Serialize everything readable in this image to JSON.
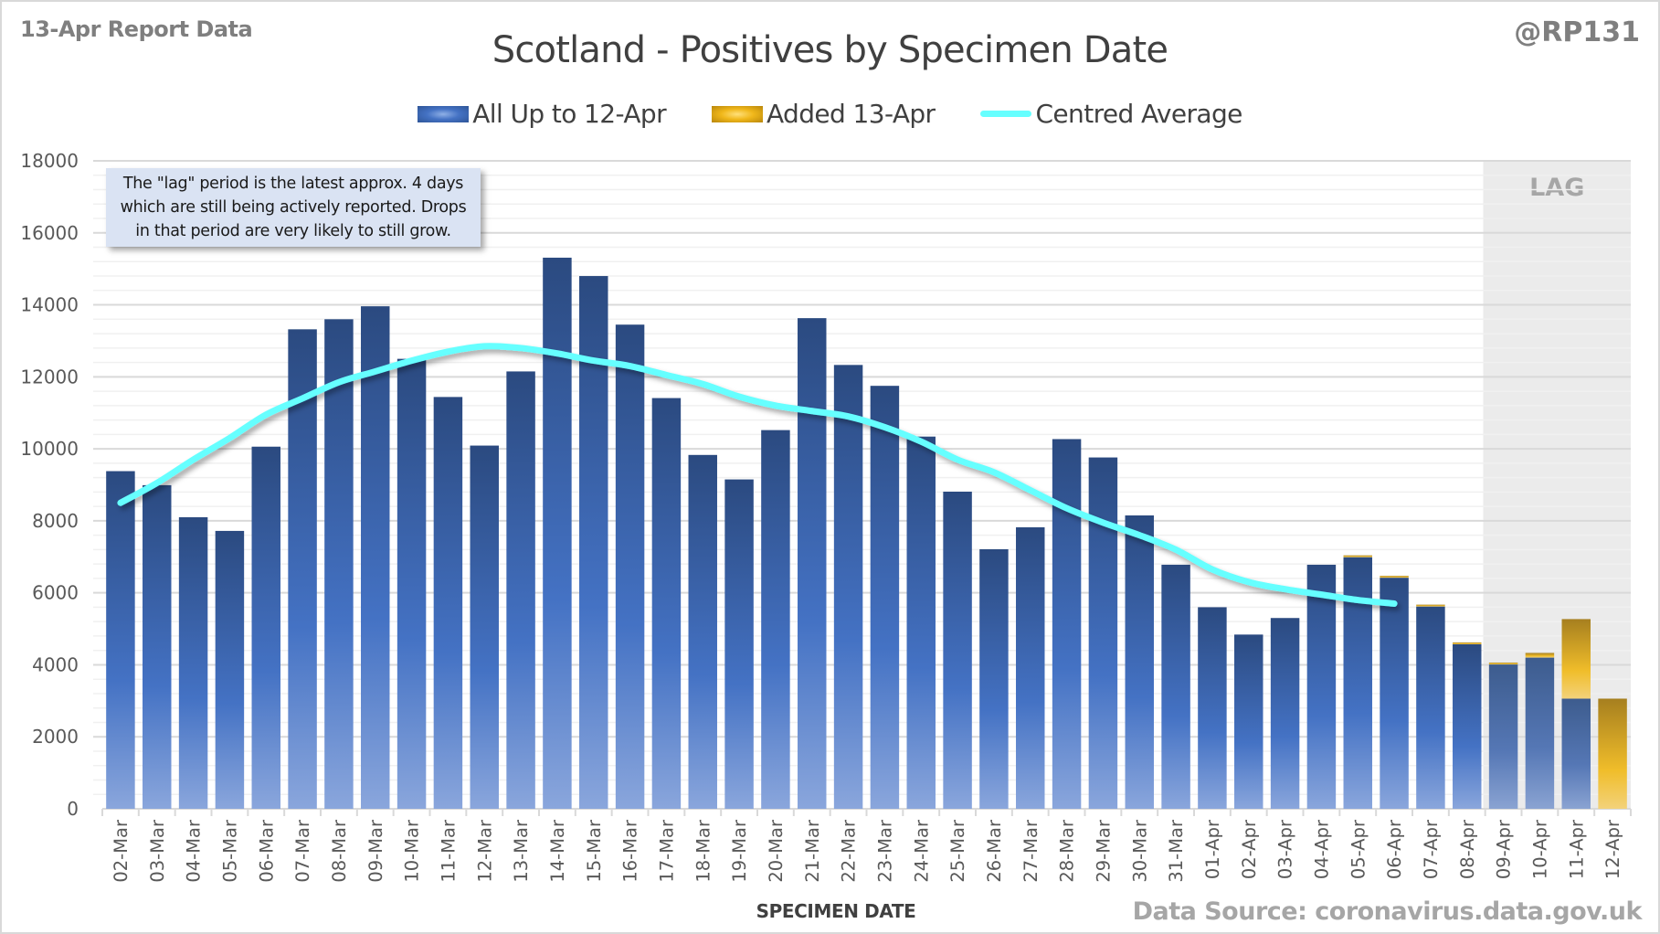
{
  "header": {
    "report_date": "13-Apr Report Data",
    "handle": "@RP131",
    "title": "Scotland - Positives by Specimen Date"
  },
  "legend": {
    "items": [
      {
        "label": "All Up to 12-Apr",
        "icon": "blue-gradient-swatch"
      },
      {
        "label": "Added 13-Apr",
        "icon": "gold-gradient-swatch"
      },
      {
        "label": "Centred Average",
        "icon": "cyan-line-swatch"
      }
    ]
  },
  "note": {
    "lines": [
      "The \"lag\" period is the latest approx. 4 days",
      "which are still being actively reported.  Drops",
      "in that period are very likely to still grow."
    ]
  },
  "lag_label": "LAG",
  "footer": {
    "xlabel": "SPECIMEN DATE",
    "source": "Data Source: coronavirus.data.gov.uk"
  },
  "colors": {
    "blue_top": "#2b4a80",
    "blue_mid": "#4472c4",
    "blue_bottom": "#8aa6dc",
    "gold_top": "#a67f1f",
    "gold_mid": "#f0bd2a",
    "gold_bottom": "#f3d27a",
    "average": "#66ffff",
    "lag_shade": "#ebebeb",
    "grid_major": "#d9d9d9",
    "grid_minor": "#f0f0f0"
  },
  "chart_data": {
    "type": "bar",
    "stacked": true,
    "title": "Scotland - Positives by Specimen Date",
    "xlabel": "SPECIMEN DATE",
    "ylabel": "",
    "ylim": [
      0,
      18000
    ],
    "yticks": [
      0,
      2000,
      4000,
      6000,
      8000,
      10000,
      12000,
      14000,
      16000,
      18000
    ],
    "ytick_labels": [
      "0",
      "2000",
      "4000",
      "6000",
      "8000",
      "10000",
      "12000",
      "14000",
      "16000",
      "18000"
    ],
    "grid": true,
    "legend_position": "top-center",
    "categories": [
      "02-Mar",
      "03-Mar",
      "04-Mar",
      "05-Mar",
      "06-Mar",
      "07-Mar",
      "08-Mar",
      "09-Mar",
      "10-Mar",
      "11-Mar",
      "12-Mar",
      "13-Mar",
      "14-Mar",
      "15-Mar",
      "16-Mar",
      "17-Mar",
      "18-Mar",
      "19-Mar",
      "20-Mar",
      "21-Mar",
      "22-Mar",
      "23-Mar",
      "24-Mar",
      "25-Mar",
      "26-Mar",
      "27-Mar",
      "28-Mar",
      "29-Mar",
      "30-Mar",
      "31-Mar",
      "01-Apr",
      "02-Apr",
      "03-Apr",
      "04-Apr",
      "05-Apr",
      "06-Apr",
      "07-Apr",
      "08-Apr",
      "09-Apr",
      "10-Apr",
      "11-Apr",
      "12-Apr"
    ],
    "series": [
      {
        "name": "All Up to 12-Apr",
        "type": "bar",
        "values": [
          9380,
          8990,
          8100,
          7720,
          10060,
          13320,
          13600,
          13960,
          12500,
          11440,
          10090,
          12150,
          15310,
          14800,
          13450,
          11410,
          9830,
          9150,
          10520,
          13630,
          12330,
          11750,
          10340,
          8810,
          7210,
          7820,
          10270,
          9760,
          8150,
          6780,
          5600,
          4840,
          5300,
          6780,
          6990,
          6420,
          5620,
          4570,
          4010,
          4200,
          3060,
          0
        ]
      },
      {
        "name": "Added 13-Apr",
        "type": "bar",
        "values": [
          0,
          0,
          0,
          0,
          0,
          0,
          0,
          0,
          0,
          0,
          0,
          0,
          0,
          0,
          0,
          0,
          0,
          0,
          0,
          0,
          0,
          0,
          0,
          0,
          0,
          0,
          0,
          0,
          0,
          0,
          0,
          0,
          0,
          0,
          40,
          30,
          30,
          20,
          20,
          130,
          2210,
          3060
        ]
      },
      {
        "name": "Centred Average",
        "type": "line",
        "values": [
          8500,
          9050,
          9700,
          10300,
          10950,
          11400,
          11850,
          12150,
          12450,
          12700,
          12850,
          12800,
          12650,
          12450,
          12300,
          12050,
          11800,
          11450,
          11200,
          11050,
          10900,
          10600,
          10200,
          9700,
          9350,
          8850,
          8350,
          7950,
          7600,
          7200,
          6650,
          6300,
          6100,
          5950,
          5800,
          5700,
          null,
          null,
          null,
          null,
          null,
          null
        ]
      }
    ],
    "annotations": [
      {
        "type": "shaded_region",
        "label": "LAG",
        "from": "09-Apr",
        "to": "12-Apr"
      }
    ]
  }
}
